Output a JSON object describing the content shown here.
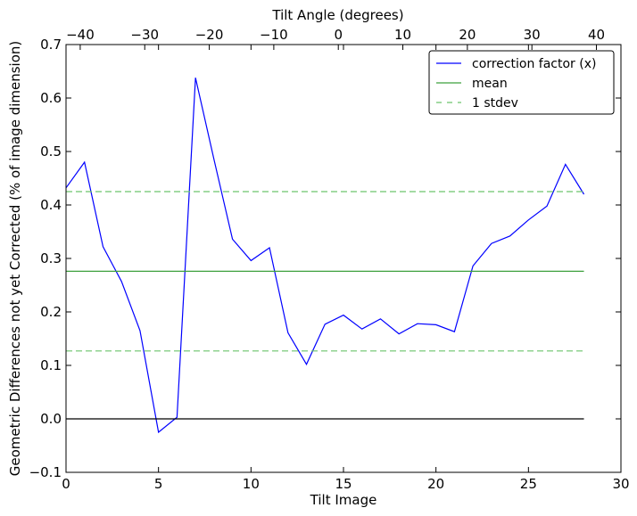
{
  "chart_data": {
    "type": "line",
    "title": "",
    "xlabel": "Tilt Image",
    "ylabel": "Geometric Differences not yet Corrected (% of image dimension)",
    "top_xlabel": "Tilt Angle (degrees)",
    "xlim": [
      0,
      30
    ],
    "ylim": [
      -0.1,
      0.7
    ],
    "top_xlim": [
      -42.2,
      43.8
    ],
    "x_ticks": [
      0,
      5,
      10,
      15,
      20,
      25,
      30
    ],
    "x_tick_labels": [
      "0",
      "5",
      "10",
      "15",
      "20",
      "25",
      "30"
    ],
    "y_ticks": [
      -0.1,
      0.0,
      0.1,
      0.2,
      0.3,
      0.4,
      0.5,
      0.6,
      0.7
    ],
    "y_tick_labels": [
      "−0.1",
      "0.0",
      "0.1",
      "0.2",
      "0.3",
      "0.4",
      "0.5",
      "0.6",
      "0.7"
    ],
    "top_ticks": [
      -40,
      -30,
      -20,
      -10,
      0,
      10,
      20,
      30,
      40
    ],
    "top_tick_labels": [
      "−40",
      "−30",
      "−20",
      "−10",
      "0",
      "10",
      "20",
      "30",
      "40"
    ],
    "grid": false,
    "legend_position": "top-right",
    "series": [
      {
        "name": "correction factor (x)",
        "style": "solid",
        "color": "#0000ff",
        "x": [
          0,
          1,
          2,
          3,
          4,
          5,
          6,
          7,
          8,
          9,
          10,
          11,
          12,
          13,
          14,
          15,
          16,
          17,
          18,
          19,
          20,
          21,
          22,
          23,
          24,
          25,
          26,
          27,
          28
        ],
        "values": [
          0.432,
          0.48,
          0.322,
          0.257,
          0.165,
          -0.025,
          0.003,
          0.638,
          0.485,
          0.336,
          0.296,
          0.32,
          0.161,
          0.102,
          0.177,
          0.194,
          0.168,
          0.187,
          0.159,
          0.178,
          0.176,
          0.163,
          0.286,
          0.328,
          0.342,
          0.372,
          0.398,
          0.476,
          0.42
        ]
      },
      {
        "name": "mean",
        "style": "solid",
        "color": "#3ca03c",
        "x": [
          0,
          28
        ],
        "values": [
          0.276,
          0.276
        ]
      },
      {
        "name": "1 stdev",
        "style": "dashed",
        "color": "#6cc46c",
        "x": [
          0,
          28
        ],
        "values": [
          0.425,
          0.425
        ]
      },
      {
        "style": "dashed",
        "color": "#6cc46c",
        "x": [
          0,
          28
        ],
        "values": [
          0.127,
          0.127
        ]
      },
      {
        "style": "solid",
        "color": "#000000",
        "x": [
          0,
          28
        ],
        "values": [
          0.0,
          0.0
        ]
      }
    ]
  }
}
